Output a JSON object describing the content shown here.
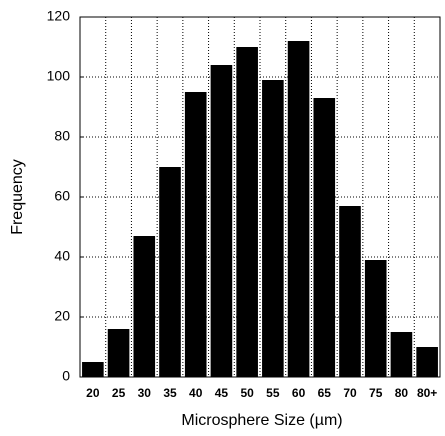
{
  "chart_data": {
    "type": "bar",
    "x_label": "Microsphere Size (µm)",
    "y_label": "Frequency",
    "categories": [
      "20",
      "25",
      "30",
      "35",
      "40",
      "45",
      "50",
      "55",
      "60",
      "65",
      "70",
      "75",
      "80",
      "80+"
    ],
    "values": [
      5,
      16,
      47,
      70,
      95,
      104,
      110,
      99,
      112,
      93,
      57,
      39,
      15,
      10
    ],
    "color": "#000000",
    "ylim": [
      0,
      120
    ],
    "yticks": [
      0,
      20,
      40,
      60,
      80,
      100,
      120
    ],
    "grid": true
  }
}
